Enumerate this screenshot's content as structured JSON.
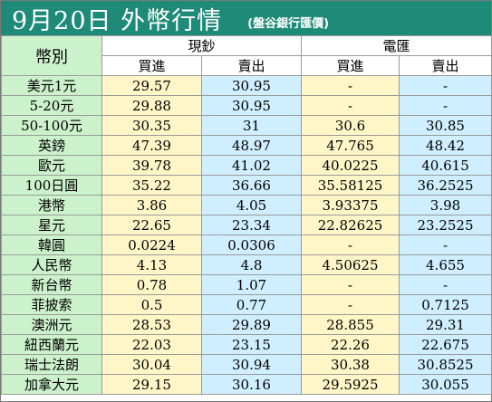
{
  "title": "9月20日 外幣行情",
  "subtitle": "(盤谷銀行匯價)",
  "header": {
    "currency": "幣別",
    "cash_chars": [
      "現",
      "鈔"
    ],
    "wire_chars": [
      "電",
      "匯"
    ],
    "buy": "買進",
    "sell": "賣出"
  },
  "rows": [
    {
      "name": "美元1元",
      "cash_buy": "29.57",
      "cash_sell": "30.95",
      "wire_buy": "-",
      "wire_sell": "-"
    },
    {
      "name": "5-20元",
      "cash_buy": "29.88",
      "cash_sell": "30.95",
      "wire_buy": "-",
      "wire_sell": "-"
    },
    {
      "name": "50-100元",
      "cash_buy": "30.35",
      "cash_sell": "31",
      "wire_buy": "30.6",
      "wire_sell": "30.85"
    },
    {
      "name": "英鎊",
      "cash_buy": "47.39",
      "cash_sell": "48.97",
      "wire_buy": "47.765",
      "wire_sell": "48.42"
    },
    {
      "name": "歐元",
      "cash_buy": "39.78",
      "cash_sell": "41.02",
      "wire_buy": "40.0225",
      "wire_sell": "40.615"
    },
    {
      "name": "100日圓",
      "cash_buy": "35.22",
      "cash_sell": "36.66",
      "wire_buy": "35.58125",
      "wire_sell": "36.2525"
    },
    {
      "name": "港幣",
      "cash_buy": "3.86",
      "cash_sell": "4.05",
      "wire_buy": "3.93375",
      "wire_sell": "3.98"
    },
    {
      "name": "星元",
      "cash_buy": "22.65",
      "cash_sell": "23.34",
      "wire_buy": "22.82625",
      "wire_sell": "23.2525"
    },
    {
      "name": "韓圓",
      "cash_buy": "0.0224",
      "cash_sell": "0.0306",
      "wire_buy": "-",
      "wire_sell": "-"
    },
    {
      "name": "人民幣",
      "cash_buy": "4.13",
      "cash_sell": "4.8",
      "wire_buy": "4.50625",
      "wire_sell": "4.655"
    },
    {
      "name": "新台幣",
      "cash_buy": "0.78",
      "cash_sell": "1.07",
      "wire_buy": "-",
      "wire_sell": "-"
    },
    {
      "name": "菲披索",
      "cash_buy": "0.5",
      "cash_sell": "0.77",
      "wire_buy": "-",
      "wire_sell": "0.7125"
    },
    {
      "name": "澳洲元",
      "cash_buy": "28.53",
      "cash_sell": "29.89",
      "wire_buy": "28.855",
      "wire_sell": "29.31"
    },
    {
      "name": "紐西蘭元",
      "cash_buy": "22.03",
      "cash_sell": "23.15",
      "wire_buy": "22.26",
      "wire_sell": "22.675"
    },
    {
      "name": "瑞士法朗",
      "cash_buy": "30.04",
      "cash_sell": "30.94",
      "wire_buy": "30.38",
      "wire_sell": "30.8525"
    },
    {
      "name": "加拿大元",
      "cash_buy": "29.15",
      "cash_sell": "30.16",
      "wire_buy": "29.5925",
      "wire_sell": "30.055"
    }
  ],
  "colors": {
    "title_bg": "#1e8a78",
    "name_bg": "#ccf2cc",
    "buy_bg": "#fff6c8",
    "sell_bg": "#cfeeff"
  }
}
